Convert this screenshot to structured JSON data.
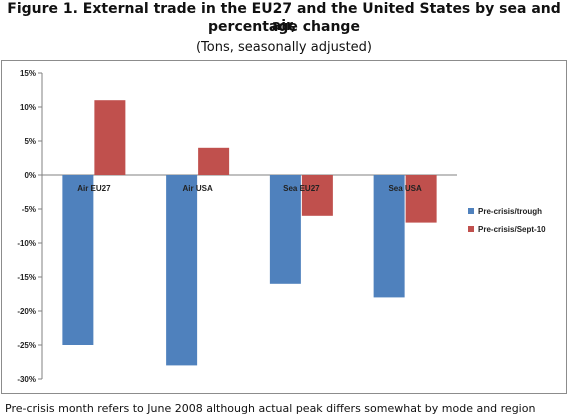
{
  "title": {
    "line1": "Figure 1.  External trade in the EU27 and the United States by sea and air,",
    "line2": "percentage change",
    "subtitle": "(Tons, seasonally adjusted)"
  },
  "footnote": "Pre-crisis month refers to June 2008 although actual peak differs somewhat by mode and region",
  "chart_data": {
    "type": "bar",
    "categories": [
      "Air EU27",
      "Air USA",
      "Sea EU27",
      "Sea USA"
    ],
    "series": [
      {
        "name": "Pre-crisis/trough",
        "color": "#4f81bd",
        "values": [
          -25,
          -28,
          -16,
          -18
        ]
      },
      {
        "name": "Pre-crisis/Sept-10",
        "color": "#c0504d",
        "values": [
          11,
          4,
          -6,
          -7
        ]
      }
    ],
    "ylim": [
      -30,
      15
    ],
    "yticks": [
      15,
      10,
      5,
      0,
      -5,
      -10,
      -15,
      -20,
      -25,
      -30
    ],
    "ytick_labels": [
      "15%",
      "10%",
      "5%",
      "0%",
      "-5%",
      "-10%",
      "-15%",
      "-20%",
      "-25%",
      "-30%"
    ],
    "grid": false,
    "legend": "right"
  }
}
